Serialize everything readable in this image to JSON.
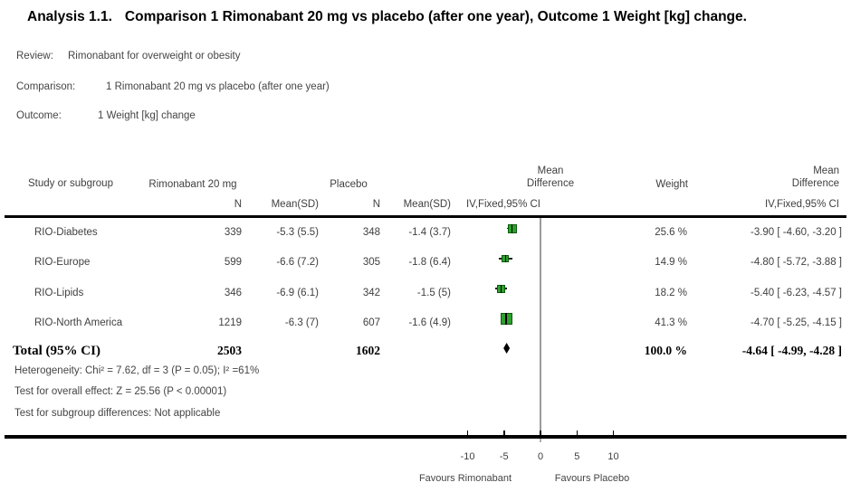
{
  "title": {
    "prefix": "Analysis 1.1.",
    "rest": "Comparison 1 Rimonabant 20 mg vs placebo (after one year), Outcome 1 Weight [kg] change."
  },
  "meta": {
    "review_label": "Review:",
    "review": "Rimonabant for overweight or obesity",
    "comparison_label": "Comparison:",
    "comparison": "1 Rimonabant 20 mg vs placebo (after one year)",
    "outcome_label": "Outcome:",
    "outcome": "1 Weight [kg] change"
  },
  "headers": {
    "study": "Study or subgroup",
    "group1": "Rimonabant 20 mg",
    "group2": "Placebo",
    "n": "N",
    "mean_sd": "Mean(SD)",
    "weight": "Weight",
    "md_top": "Mean",
    "md_bottom": "Difference",
    "ci_method": "IV,Fixed,95% CI"
  },
  "footnotes": [
    "Heterogeneity: Chi² = 7.62, df = 3 (P = 0.05); I² =61%",
    "Test for overall effect: Z = 25.56 (P < 0.00001)",
    "Test for subgroup differences: Not applicable"
  ],
  "chart_data": {
    "type": "forest",
    "title": "Analysis 1.1. Comparison 1 Rimonabant 20 mg vs placebo (after one year), Outcome 1 Weight [kg] change.",
    "effect_measure": "Mean Difference IV,Fixed,95% CI",
    "x_ticks": [
      -10,
      -5,
      0,
      5,
      10
    ],
    "favours_left": "Favours Rimonabant",
    "favours_right": "Favours Placebo",
    "marker_color": "#2da02d",
    "studies": [
      {
        "name": "RIO-Diabetes",
        "n1": "339",
        "mean_sd1": "-5.3 (5.5)",
        "n2": "348",
        "mean_sd2": "-1.4 (3.7)",
        "weight": "25.6 %",
        "weight_pct": 25.6,
        "md": -3.9,
        "ci_low": -4.6,
        "ci_high": -3.2,
        "ci_label": "-3.90 [ -4.60, -3.20 ]"
      },
      {
        "name": "RIO-Europe",
        "n1": "599",
        "mean_sd1": "-6.6 (7.2)",
        "n2": "305",
        "mean_sd2": "-1.8 (6.4)",
        "weight": "14.9 %",
        "weight_pct": 14.9,
        "md": -4.8,
        "ci_low": -5.72,
        "ci_high": -3.88,
        "ci_label": "-4.80 [ -5.72, -3.88 ]"
      },
      {
        "name": "RIO-Lipids",
        "n1": "346",
        "mean_sd1": "-6.9 (6.1)",
        "n2": "342",
        "mean_sd2": "-1.5 (5)",
        "weight": "18.2 %",
        "weight_pct": 18.2,
        "md": -5.4,
        "ci_low": -6.23,
        "ci_high": -4.57,
        "ci_label": "-5.40 [ -6.23, -4.57 ]"
      },
      {
        "name": "RIO-North America",
        "n1": "1219",
        "mean_sd1": "-6.3 (7)",
        "n2": "607",
        "mean_sd2": "-1.6 (4.9)",
        "weight": "41.3 %",
        "weight_pct": 41.3,
        "md": -4.7,
        "ci_low": -5.25,
        "ci_high": -4.15,
        "ci_label": "-4.70 [ -5.25, -4.15 ]"
      }
    ],
    "total": {
      "label": "Total (95% CI)",
      "n1": "2503",
      "n2": "1602",
      "weight": "100.0 %",
      "md": -4.64,
      "ci_low": -4.99,
      "ci_high": -4.28,
      "ci_label": "-4.64 [ -4.99, -4.28 ]"
    }
  }
}
